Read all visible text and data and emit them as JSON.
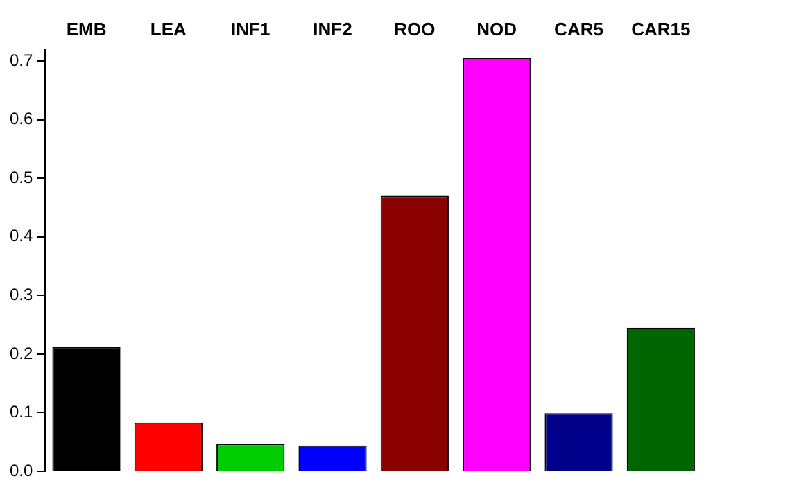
{
  "chart_data": {
    "type": "bar",
    "categories": [
      "EMB",
      "LEA",
      "INF1",
      "INF2",
      "ROO",
      "NOD",
      "CAR5",
      "CAR15"
    ],
    "values": [
      0.212,
      0.083,
      0.047,
      0.044,
      0.47,
      0.706,
      0.099,
      0.245
    ],
    "colors": [
      "#000000",
      "#ff0000",
      "#00cd00",
      "#0000ff",
      "#8b0000",
      "#ff00ff",
      "#00008b",
      "#006400"
    ],
    "ylim": [
      0,
      0.72
    ],
    "yticks": [
      {
        "value": 0,
        "label": "0.0"
      },
      0.1,
      0.2,
      0.3,
      0.4,
      0.5,
      0.6,
      0.7
    ],
    "grid": false,
    "legend": false
  }
}
